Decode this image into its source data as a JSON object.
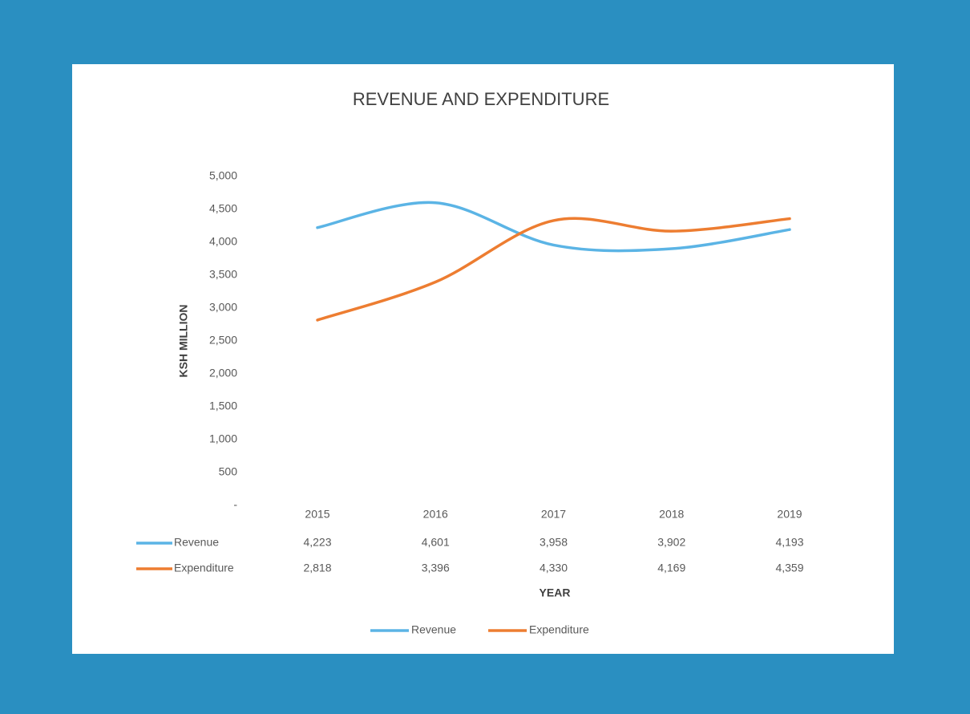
{
  "chart_data": {
    "type": "line",
    "title": "REVENUE  AND EXPENDITURE",
    "x_label": "YEAR",
    "y_label": "KSH MILLION",
    "categories": [
      "2015",
      "2016",
      "2017",
      "2018",
      "2019"
    ],
    "series": [
      {
        "name": "Revenue",
        "color": "#5bb4e5",
        "values": [
          4223,
          4601,
          3958,
          3902,
          4193
        ],
        "value_labels": [
          "4,223",
          "4,601",
          "3,958",
          "3,902",
          "4,193"
        ]
      },
      {
        "name": "Expenditure",
        "color": "#ed7d31",
        "values": [
          2818,
          3396,
          4330,
          4169,
          4359
        ],
        "value_labels": [
          "2,818",
          "3,396",
          "4,330",
          "4,169",
          "4,359"
        ]
      }
    ],
    "ylim": [
      0,
      5000
    ],
    "yticks": [
      {
        "value": 0,
        "label": "-"
      },
      500,
      {
        "value": 1000,
        "label": "1,000"
      },
      {
        "value": 1500,
        "label": "1,500"
      },
      {
        "value": 2000,
        "label": "2,000"
      },
      {
        "value": 2500,
        "label": "2,500"
      },
      {
        "value": 3000,
        "label": "3,000"
      },
      {
        "value": 3500,
        "label": "3,500"
      },
      {
        "value": 4000,
        "label": "4,000"
      },
      {
        "value": 4500,
        "label": "4,500"
      },
      {
        "value": 5000,
        "label": "5,000"
      }
    ],
    "grid": false,
    "smooth": true,
    "legend": "bottom",
    "data_table": true
  }
}
